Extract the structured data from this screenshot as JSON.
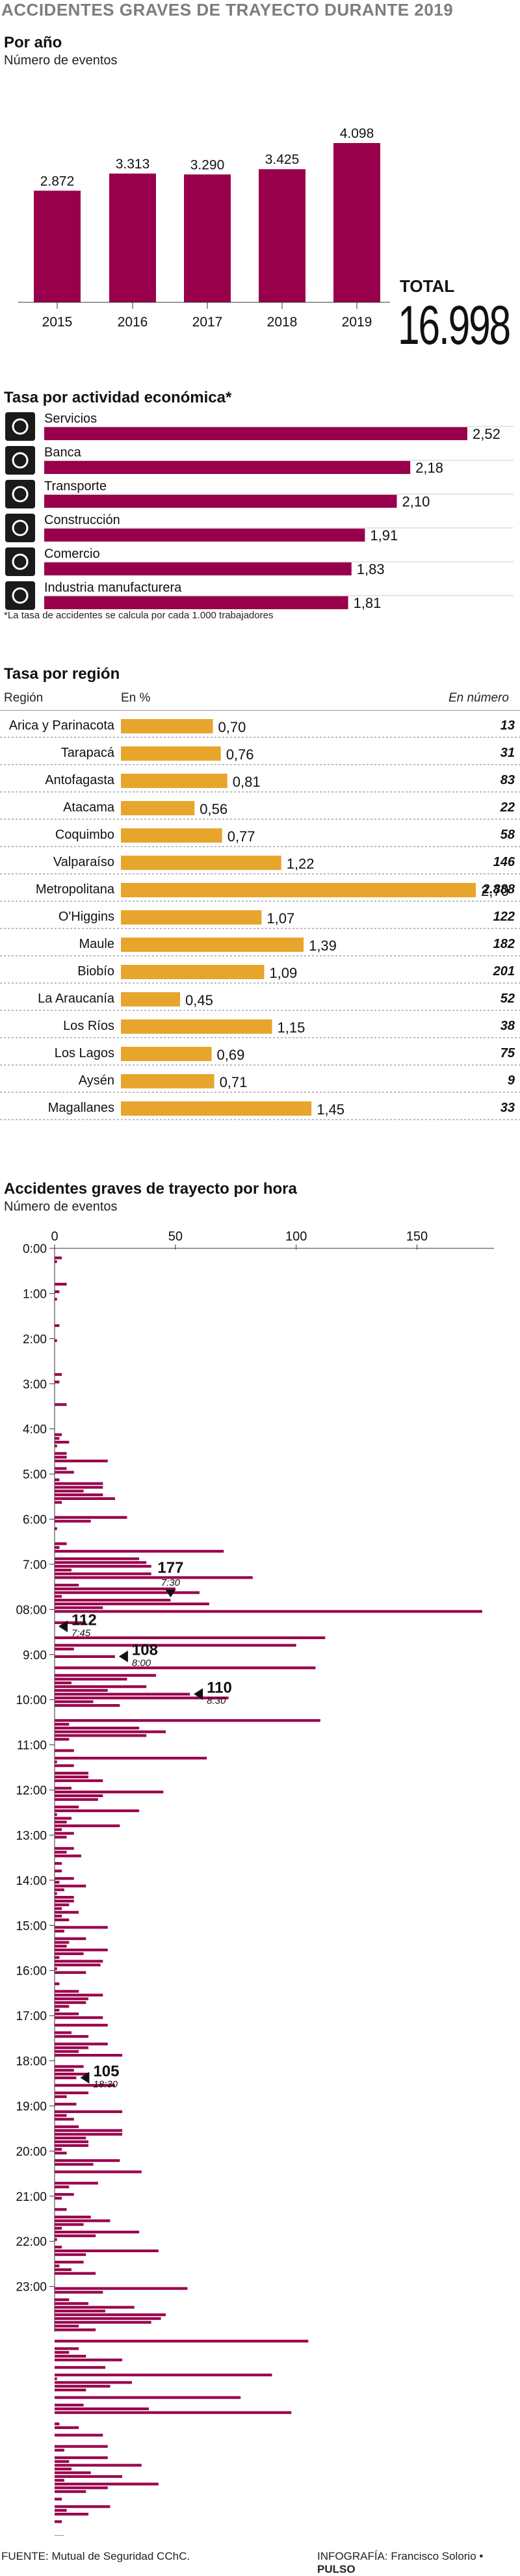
{
  "header": {
    "title": "ACCIDENTES GRAVES DE TRAYECTO DURANTE 2019"
  },
  "por_ano": {
    "title": "Por año",
    "subtitle": "Número de eventos",
    "total_label": "TOTAL",
    "total_value": "16.998",
    "value_labels": [
      "2.872",
      "3.313",
      "3.290",
      "3.425",
      "4.098"
    ]
  },
  "actividad": {
    "title": "Tasa por actividad económica*",
    "note": "*La tasa de accidentes se calcula por cada 1.000 trabajadores",
    "icons": [
      "water-tap-icon",
      "bank-icon",
      "airplane-icon",
      "building-icon",
      "shopping-cart-icon",
      "factory-gears-icon"
    ],
    "value_labels": [
      "2,52",
      "2,18",
      "2,10",
      "1,91",
      "1,83",
      "1,81"
    ]
  },
  "region": {
    "title": "Tasa por región",
    "col_region": "Región",
    "col_pct": "En %",
    "col_num": "En número",
    "value_labels": [
      "0,70",
      "0,76",
      "0,81",
      "0,56",
      "0,77",
      "1,22",
      "2,70",
      "1,07",
      "1,39",
      "1,09",
      "0,45",
      "1,15",
      "0,69",
      "0,71",
      "1,45"
    ],
    "numbers": [
      "13",
      "31",
      "83",
      "22",
      "58",
      "146",
      "2.888",
      "122",
      "182",
      "201",
      "52",
      "38",
      "75",
      "9",
      "33"
    ]
  },
  "hora": {
    "title": "Accidentes graves de trayecto por hora",
    "subtitle": "Número de eventos",
    "annotations": [
      {
        "value": "177",
        "time": "7:30"
      },
      {
        "value": "112",
        "time": "7:45"
      },
      {
        "value": "108",
        "time": "8:00"
      },
      {
        "value": "110",
        "time": "8:30"
      },
      {
        "value": "105",
        "time": "18:30"
      }
    ]
  },
  "footer": {
    "source": "FUENTE: Mutual de Seguridad CChC.",
    "credit_label": "INFOGRAFÍA: Francisco Solorio",
    "credit_brand": "PULSO"
  },
  "colors": {
    "purple": "#99004c",
    "orange": "#e8a52c",
    "grey_title": "#7d7d7d"
  },
  "chart_data": [
    {
      "type": "bar",
      "title": "Por año",
      "ylabel": "Número de eventos",
      "categories": [
        "2015",
        "2016",
        "2017",
        "2018",
        "2019"
      ],
      "values": [
        2872,
        3313,
        3290,
        3425,
        4098
      ],
      "ylim": [
        0,
        4098
      ]
    },
    {
      "type": "bar",
      "title": "Tasa por actividad económica*",
      "orientation": "horizontal",
      "categories": [
        "Servicios",
        "Banca",
        "Transporte",
        "Construcción",
        "Comercio",
        "Industria manufacturera"
      ],
      "values": [
        2.52,
        2.18,
        2.1,
        1.91,
        1.83,
        1.81
      ]
    },
    {
      "type": "bar",
      "title": "Tasa por región",
      "orientation": "horizontal",
      "categories": [
        "Arica y Parinacota",
        "Tarapacá",
        "Antofagasta",
        "Atacama",
        "Coquimbo",
        "Valparaíso",
        "Metropolitana",
        "O'Higgins",
        "Maule",
        "Biobío",
        "La Araucanía",
        "Los Ríos",
        "Los Lagos",
        "Aysén",
        "Magallanes"
      ],
      "series": [
        {
          "name": "En %",
          "values": [
            0.7,
            0.76,
            0.81,
            0.56,
            0.77,
            1.22,
            2.7,
            1.07,
            1.39,
            1.09,
            0.45,
            1.15,
            0.69,
            0.71,
            1.45
          ]
        },
        {
          "name": "En número",
          "values": [
            13,
            31,
            83,
            22,
            58,
            146,
            2888,
            122,
            182,
            201,
            52,
            38,
            75,
            9,
            33
          ]
        }
      ]
    },
    {
      "type": "bar",
      "title": "Accidentes graves de trayecto por hora",
      "ylabel": "Número de eventos",
      "orientation": "horizontal",
      "x_ticks": [
        "0",
        "50",
        "100",
        "150"
      ],
      "xlim": [
        0,
        180
      ],
      "y_ticks": [
        "0:00",
        "1:00",
        "2:00",
        "3:00",
        "4:00",
        "5:00",
        "6:00",
        "7:00",
        "08:00",
        "9:00",
        "10:00",
        "11:00",
        "12:00",
        "13:00",
        "14:00",
        "15:00",
        "16:00",
        "17:00",
        "18:00",
        "19:00",
        "20:00",
        "21:00",
        "22:00",
        "23:00"
      ],
      "bin_minutes": 5,
      "values": [
        0,
        0,
        3,
        1,
        0,
        0,
        0,
        0,
        0,
        5,
        0,
        2,
        0,
        1,
        0,
        0,
        0,
        0,
        0,
        0,
        2,
        0,
        0,
        0,
        1,
        0,
        0,
        0,
        0,
        0,
        0,
        0,
        0,
        3,
        0,
        2,
        0,
        0,
        0,
        0,
        0,
        5,
        0,
        0,
        0,
        0,
        0,
        0,
        0,
        3,
        2,
        6,
        1,
        0,
        5,
        5,
        22,
        0,
        5,
        8,
        0,
        2,
        20,
        20,
        12,
        20,
        25,
        3,
        0,
        0,
        0,
        30,
        15,
        0,
        1,
        0,
        0,
        0,
        5,
        2,
        70,
        0,
        35,
        38,
        40,
        7,
        40,
        82,
        0,
        10,
        50,
        60,
        3,
        48,
        64,
        20,
        177,
        0,
        0,
        13,
        0,
        0,
        0,
        112,
        0,
        100,
        8,
        0,
        25,
        0,
        0,
        108,
        0,
        42,
        30,
        7,
        38,
        22,
        56,
        72,
        16,
        27,
        0,
        0,
        0,
        110,
        6,
        35,
        46,
        38,
        6,
        0,
        0,
        8,
        0,
        63,
        1,
        8,
        0,
        14,
        14,
        20,
        0,
        7,
        45,
        20,
        18,
        0,
        10,
        35,
        1,
        7,
        5,
        27,
        3,
        8,
        5,
        0,
        0,
        8,
        5,
        11,
        0,
        3,
        0,
        3,
        0,
        8,
        2,
        13,
        4,
        1,
        8,
        8,
        6,
        3,
        10,
        3,
        6,
        0,
        22,
        4,
        0,
        13,
        6,
        5,
        22,
        12,
        2,
        20,
        19,
        1,
        13,
        0,
        0,
        2,
        0,
        10,
        20,
        14,
        13,
        6,
        2,
        10,
        20,
        0,
        22,
        0,
        7,
        14,
        0,
        22,
        14,
        10,
        28,
        0,
        0,
        12,
        8,
        14,
        9,
        0,
        25,
        0,
        14,
        5,
        0,
        9,
        0,
        28,
        5,
        8,
        0,
        10,
        28,
        28,
        13,
        14,
        14,
        3,
        5,
        0,
        27,
        16,
        0,
        36,
        0,
        0,
        18,
        6,
        0,
        8,
        3,
        0,
        0,
        5,
        0,
        15,
        23,
        12,
        3,
        35,
        17,
        1,
        0,
        3,
        43,
        13,
        0,
        12,
        2,
        7,
        17,
        0,
        0,
        0,
        55,
        20,
        0,
        6,
        14,
        33,
        21,
        46,
        44,
        40,
        10,
        17,
        0,
        0,
        105,
        0,
        10,
        6,
        13,
        28,
        0,
        21,
        0,
        90,
        1,
        32,
        23,
        13,
        0,
        77,
        0,
        12,
        39,
        98,
        0,
        0,
        2,
        10,
        0,
        20,
        0,
        0,
        22,
        4,
        0,
        22,
        6,
        36,
        7,
        15,
        28,
        4,
        43,
        22,
        13,
        0,
        3,
        0,
        23,
        5,
        14,
        0,
        3,
        0,
        0,
        0,
        4,
        22,
        1,
        0,
        0,
        20,
        16,
        0,
        12,
        20,
        0,
        0,
        6,
        0,
        5,
        11,
        7,
        0,
        0,
        3,
        12,
        7,
        20,
        0,
        0,
        0,
        12,
        5,
        0,
        0,
        5,
        5,
        3,
        0,
        6,
        3,
        0,
        3,
        5,
        5,
        0
      ]
    }
  ]
}
